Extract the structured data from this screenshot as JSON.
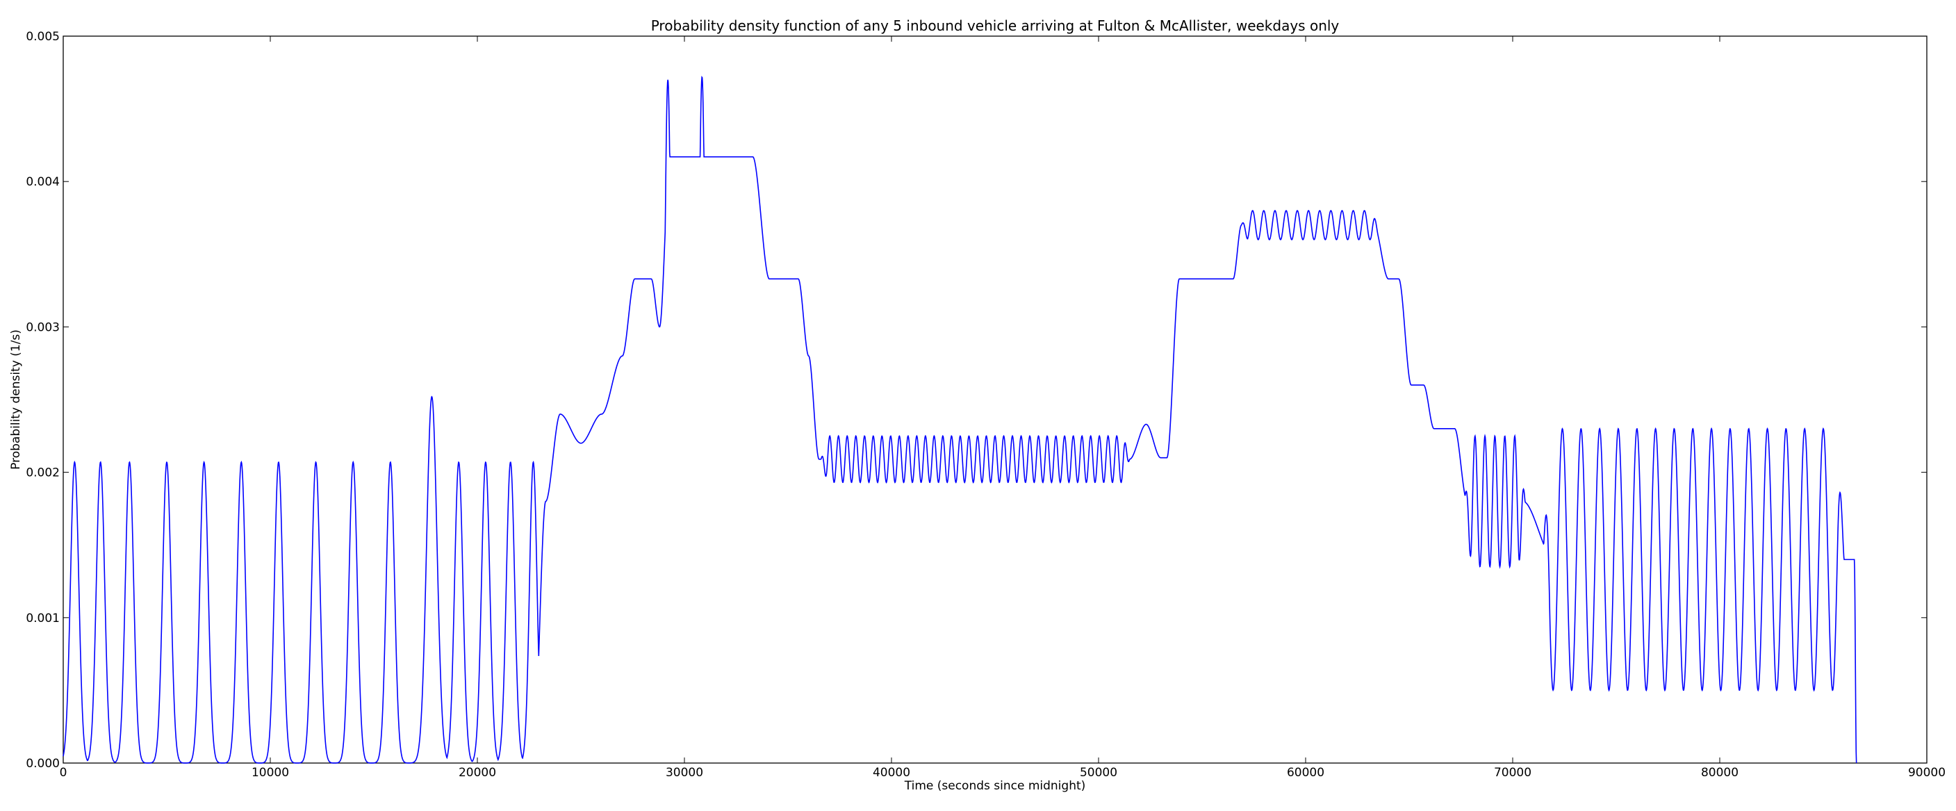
{
  "chart_data": {
    "type": "line",
    "title": "Probability density function of any 5 inbound vehicle arriving at Fulton & McAllister, weekdays only",
    "xlabel": "Time (seconds since midnight)",
    "ylabel": "Probability density (1/s)",
    "xlim": [
      0,
      90000
    ],
    "ylim": [
      0,
      0.005
    ],
    "xticks": [
      0,
      10000,
      20000,
      30000,
      40000,
      50000,
      60000,
      70000,
      80000,
      90000
    ],
    "xtick_labels": [
      "0",
      "10000",
      "20000",
      "30000",
      "40000",
      "50000",
      "60000",
      "70000",
      "80000",
      "90000"
    ],
    "yticks": [
      0,
      0.001,
      0.002,
      0.003,
      0.004,
      0.005
    ],
    "ytick_labels": [
      "0.000",
      "0.001",
      "0.002",
      "0.003",
      "0.004",
      "0.005"
    ],
    "grid": false,
    "legend": "none",
    "series": [
      {
        "color": "#0000ff",
        "baseline_density": [
          [
            0,
            0.0
          ],
          [
            22700,
            0.0
          ],
          [
            23300,
            0.0018
          ],
          [
            24000,
            0.0024
          ],
          [
            25000,
            0.0022
          ],
          [
            26000,
            0.0024
          ],
          [
            27000,
            0.0028
          ],
          [
            27600,
            0.00333
          ],
          [
            28400,
            0.00333
          ],
          [
            28800,
            0.003
          ],
          [
            29300,
            0.00417
          ],
          [
            33300,
            0.00417
          ],
          [
            34100,
            0.00333
          ],
          [
            35500,
            0.00333
          ],
          [
            36000,
            0.0028
          ],
          [
            36500,
            0.00209
          ],
          [
            51500,
            0.00209
          ],
          [
            52300,
            0.00233
          ],
          [
            53000,
            0.0021
          ],
          [
            53300,
            0.0021
          ],
          [
            53900,
            0.00333
          ],
          [
            56500,
            0.00333
          ],
          [
            56900,
            0.0037
          ],
          [
            63300,
            0.0037
          ],
          [
            64000,
            0.00333
          ],
          [
            64500,
            0.00333
          ],
          [
            65100,
            0.0026
          ],
          [
            65700,
            0.0026
          ],
          [
            66200,
            0.0023
          ],
          [
            67200,
            0.0023
          ],
          [
            67800,
            0.0018
          ],
          [
            70500,
            0.0018
          ],
          [
            72000,
            0.0014
          ],
          [
            86500,
            0.0014
          ],
          [
            86600,
            0.0
          ],
          [
            90000,
            0.0
          ]
        ],
        "gaussian_peaks": [
          [
            550,
            0.00207,
            200
          ],
          [
            1800,
            0.00207,
            200
          ],
          [
            3200,
            0.00207,
            200
          ],
          [
            5000,
            0.00207,
            200
          ],
          [
            6800,
            0.00207,
            200
          ],
          [
            8600,
            0.00207,
            200
          ],
          [
            10400,
            0.00207,
            200
          ],
          [
            12200,
            0.00207,
            200
          ],
          [
            14000,
            0.00207,
            200
          ],
          [
            15800,
            0.00207,
            200
          ],
          [
            17800,
            0.00252,
            250
          ],
          [
            19100,
            0.00207,
            200
          ],
          [
            20400,
            0.00207,
            200
          ],
          [
            21600,
            0.00207,
            200
          ],
          [
            22700,
            0.00207,
            180
          ],
          [
            29200,
            0.0047,
            180
          ],
          [
            30850,
            0.00472,
            180
          ]
        ],
        "oscillation_bands": [
          [
            36600,
            51500,
            0.00209,
            0.00016,
            420
          ],
          [
            56900,
            63500,
            0.0037,
            0.0001,
            540
          ],
          [
            67700,
            70600,
            0.0017,
            0.00045,
            480
          ],
          [
            71500,
            86000,
            0.00115,
            0.0009,
            900
          ]
        ]
      }
    ]
  }
}
